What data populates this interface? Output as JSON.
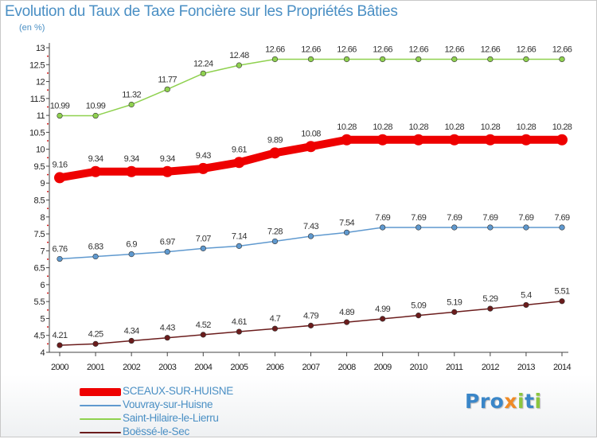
{
  "header": {
    "title": "Evolution du Taux de Taxe Foncière sur les Propriétés Bâties",
    "unit": "(en %)"
  },
  "logo": {
    "text": "Proxiti",
    "letters": [
      {
        "ch": "P",
        "color": "#3a86c8"
      },
      {
        "ch": "r",
        "color": "#3a86c8"
      },
      {
        "ch": "o",
        "color": "#3a86c8"
      },
      {
        "ch": "x",
        "color": "#f08a24"
      },
      {
        "ch": "i",
        "color": "#8cc63f"
      },
      {
        "ch": "t",
        "color": "#3a86c8"
      },
      {
        "ch": "i",
        "color": "#8cc63f"
      }
    ]
  },
  "chart_data": {
    "type": "line",
    "title": "Evolution du Taux de Taxe Foncière sur les Propriétés Bâties",
    "ylabel": "(en %)",
    "xlabel": "",
    "ylim": [
      4,
      13
    ],
    "yticks": [
      "4",
      "4.5",
      "5",
      "5.5",
      "6",
      "6.5",
      "7",
      "7.5",
      "8",
      "8.5",
      "9",
      "9.5",
      "10",
      "10.5",
      "11",
      "11.5",
      "12",
      "12.5",
      "13"
    ],
    "x": [
      "2000",
      "2001",
      "2002",
      "2003",
      "2004",
      "2005",
      "2006",
      "2007",
      "2008",
      "2009",
      "2010",
      "2011",
      "2012",
      "2013",
      "2014"
    ],
    "grid": false,
    "legend_position": "bottom-left",
    "series": [
      {
        "name": "SCEAUX-SUR-HUISNE",
        "color": "#ee0000",
        "emphasis": true,
        "values": [
          9.16,
          9.34,
          9.34,
          9.34,
          9.43,
          9.61,
          9.89,
          10.08,
          10.28,
          10.28,
          10.28,
          10.28,
          10.28,
          10.28,
          10.28
        ],
        "labels": [
          "9.16",
          "9.34",
          "9.34",
          "9.34",
          "9.43",
          "9.61",
          "9.89",
          "10.08",
          "10.28",
          "10.28",
          "10.28",
          "10.28",
          "10.28",
          "10.28",
          "10.28"
        ]
      },
      {
        "name": "Vouvray-sur-Huisne",
        "color": "#5f99cf",
        "emphasis": false,
        "values": [
          6.76,
          6.83,
          6.9,
          6.97,
          7.07,
          7.14,
          7.28,
          7.43,
          7.54,
          7.69,
          7.69,
          7.69,
          7.69,
          7.69,
          7.69
        ],
        "labels": [
          "6.76",
          "6.83",
          "6.9",
          "6.97",
          "7.07",
          "7.14",
          "7.28",
          "7.43",
          "7.54",
          "7.69",
          "7.69",
          "7.69",
          "7.69",
          "7.69",
          "7.69"
        ]
      },
      {
        "name": "Saint-Hilaire-le-Lierru",
        "color": "#8fd14f",
        "emphasis": false,
        "values": [
          10.99,
          10.99,
          11.32,
          11.77,
          12.24,
          12.48,
          12.66,
          12.66,
          12.66,
          12.66,
          12.66,
          12.66,
          12.66,
          12.66,
          12.66
        ],
        "labels": [
          "10.99",
          "10.99",
          "11.32",
          "11.77",
          "12.24",
          "12.48",
          "12.66",
          "12.66",
          "12.66",
          "12.66",
          "12.66",
          "12.66",
          "12.66",
          "12.66",
          "12.66"
        ]
      },
      {
        "name": "Boëssé-le-Sec",
        "color": "#6b1c1c",
        "emphasis": false,
        "values": [
          4.21,
          4.25,
          4.34,
          4.43,
          4.52,
          4.61,
          4.7,
          4.79,
          4.89,
          4.99,
          5.09,
          5.19,
          5.29,
          5.4,
          5.51
        ],
        "labels": [
          "4.21",
          "4.25",
          "4.34",
          "4.43",
          "4.52",
          "4.61",
          "4.7",
          "4.79",
          "4.89",
          "4.99",
          "5.09",
          "5.19",
          "5.29",
          "5.4",
          "5.51"
        ]
      }
    ]
  }
}
